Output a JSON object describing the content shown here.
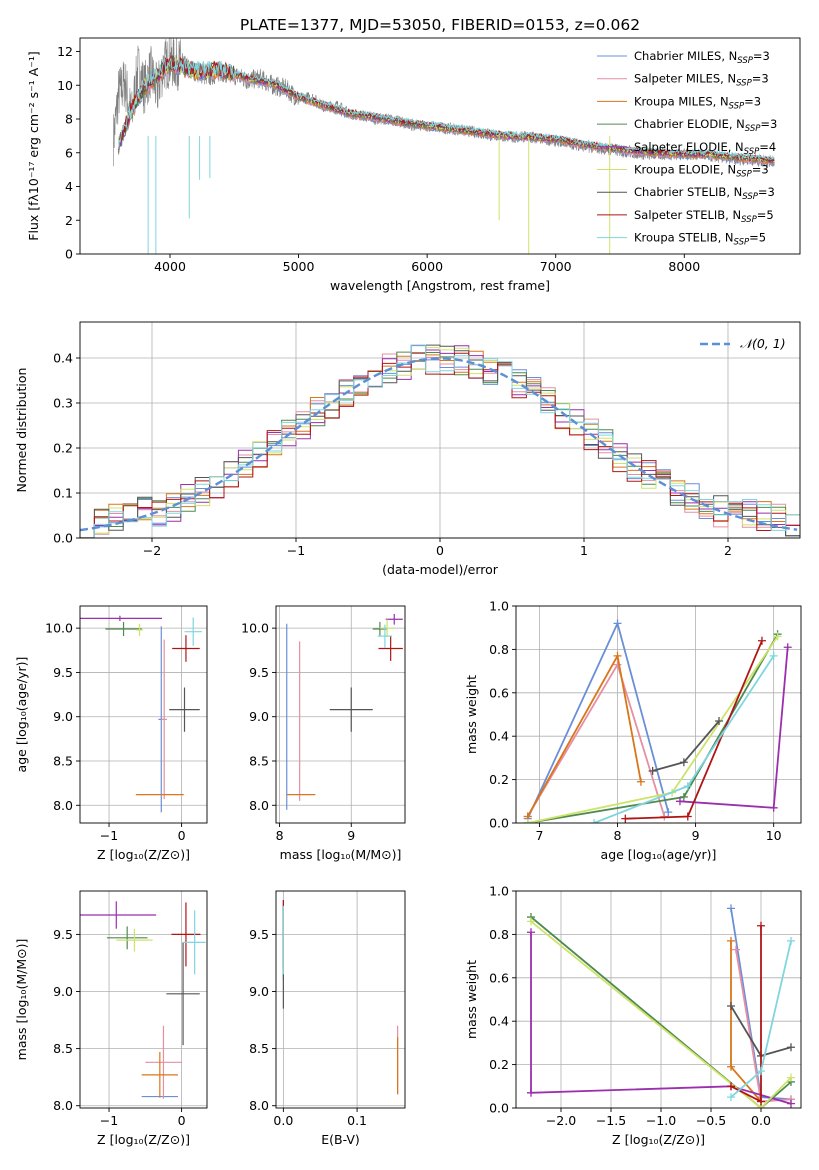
{
  "figure_title": "PLATE=1377, MJD=53050, FIBERID=0153, z=0.062",
  "models": [
    {
      "name": "Chabrier MILES",
      "nssp": "3",
      "color": "#6a8fd8"
    },
    {
      "name": "Salpeter MILES",
      "nssp": "3",
      "color": "#e58fa3"
    },
    {
      "name": "Kroupa MILES",
      "nssp": "3",
      "color": "#d9761a"
    },
    {
      "name": "Chabrier ELODIE",
      "nssp": "3",
      "color": "#4f8a4f"
    },
    {
      "name": "Salpeter ELODIE",
      "nssp": "4",
      "color": "#9b2fae"
    },
    {
      "name": "Kroupa ELODIE",
      "nssp": "3",
      "color": "#cde36a"
    },
    {
      "name": "Chabrier STELIB",
      "nssp": "3",
      "color": "#555555"
    },
    {
      "name": "Salpeter STELIB",
      "nssp": "5",
      "color": "#b01515"
    },
    {
      "name": "Kroupa STELIB",
      "nssp": "5",
      "color": "#7fd6df"
    }
  ],
  "chart_data": [
    {
      "id": "spectrum",
      "type": "line",
      "xlabel": "wavelength [Angstrom, rest frame]",
      "ylabel": "Flux [fλ10⁻¹⁷ erg cm⁻² s⁻¹ A⁻¹]",
      "xlim": [
        3300,
        8900
      ],
      "ylim": [
        0,
        12.8
      ],
      "xticks": [
        4000,
        5000,
        6000,
        7000,
        8000
      ],
      "yticks": [
        0,
        2,
        4,
        6,
        8,
        10,
        12
      ],
      "data_series": {
        "name": "",
        "color": "#808080",
        "x": [
          3560,
          3600,
          3650,
          3700,
          3750,
          3800,
          3850,
          3900,
          3950,
          4000,
          4100,
          4200,
          4300,
          4400,
          4500,
          4600,
          4700,
          4800,
          4900,
          5000,
          5100,
          5200,
          5300,
          5400,
          5500,
          5600,
          5700,
          5800,
          5900,
          6000,
          6100,
          6200,
          6300,
          6400,
          6500,
          6600,
          6700,
          6800,
          6900,
          7000,
          7100,
          7200,
          7300,
          7400,
          7500,
          7600,
          7700,
          7800,
          7900,
          8000,
          8100,
          8200,
          8300,
          8400,
          8500,
          8600,
          8700
        ],
        "y": [
          6.8,
          9.5,
          10.2,
          8.0,
          11.0,
          9.8,
          10.8,
          9.6,
          11.2,
          11.4,
          11.2,
          10.8,
          10.5,
          10.8,
          10.6,
          10.3,
          10.4,
          10.0,
          9.8,
          9.2,
          9.3,
          8.7,
          8.8,
          8.3,
          8.2,
          8.0,
          8.0,
          7.8,
          7.6,
          7.6,
          7.5,
          7.4,
          7.3,
          7.2,
          7.0,
          7.0,
          6.9,
          7.0,
          6.8,
          6.7,
          6.6,
          6.4,
          6.3,
          6.2,
          6.1,
          6.0,
          5.9,
          5.9,
          5.9,
          5.9,
          5.9,
          5.8,
          5.7,
          5.6,
          5.6,
          5.5,
          5.5
        ]
      },
      "model_series": {
        "name": "",
        "color": "#7fd6df",
        "x": [
          3600,
          3700,
          3800,
          3900,
          4000,
          4200,
          4400,
          4600,
          4800,
          5000,
          5200,
          5400,
          5600,
          5800,
          6000,
          6200,
          6400,
          6600,
          6800,
          7000,
          7200,
          7400,
          7600,
          7800,
          8000,
          8200,
          8400,
          8600,
          8700
        ],
        "y": [
          6.5,
          8.5,
          9.9,
          10.6,
          11.3,
          10.8,
          10.9,
          10.4,
          10.1,
          9.3,
          8.8,
          8.3,
          8.1,
          7.8,
          7.6,
          7.4,
          7.2,
          7.0,
          6.9,
          6.8,
          6.5,
          6.3,
          6.1,
          6.0,
          5.9,
          5.9,
          5.7,
          5.6,
          5.5
        ]
      }
    },
    {
      "id": "residual_histogram",
      "type": "histogram",
      "xlabel": "(data-model)/error",
      "ylabel": "Normed distribution",
      "xlim": [
        -2.5,
        2.5
      ],
      "ylim": [
        0,
        0.48
      ],
      "xticks": [
        -2,
        -1,
        0,
        1,
        2
      ],
      "yticks": [
        0.0,
        0.1,
        0.2,
        0.3,
        0.4
      ],
      "legend": "𝒩(0, 1)",
      "legend_loc": "upper right",
      "bin_width": 0.1
    },
    {
      "id": "age_vs_Z",
      "type": "errorbar",
      "xlabel": "Z [log₁₀(Z/Z⊙)]",
      "ylabel": "age  [log₁₀(age/yr)]",
      "xlim": [
        -1.4,
        0.35
      ],
      "ylim": [
        7.8,
        10.25
      ],
      "xticks": [
        -1,
        0
      ],
      "yticks": [
        8.0,
        8.5,
        9.0,
        9.5,
        10.0
      ],
      "points": [
        {
          "m": 0,
          "x": -0.28,
          "y": 8.97,
          "xerr": 0.04,
          "yerr": 1.05
        },
        {
          "m": 1,
          "x": -0.24,
          "y": 8.97,
          "xerr": 0.04,
          "yerr": 0.9
        },
        {
          "m": 2,
          "x": -0.3,
          "y": 8.12,
          "xerr": 0.33,
          "yerr": 0.0
        },
        {
          "m": 3,
          "x": -0.8,
          "y": 9.99,
          "xerr": 0.25,
          "yerr": 0.08
        },
        {
          "m": 4,
          "x": -0.85,
          "y": 10.11,
          "xerr": 0.58,
          "yerr": 0.03
        },
        {
          "m": 5,
          "x": -0.58,
          "y": 9.98,
          "xerr": 0.05,
          "yerr": 0.07
        },
        {
          "m": 6,
          "x": 0.04,
          "y": 9.08,
          "xerr": 0.21,
          "yerr": 0.25
        },
        {
          "m": 7,
          "x": 0.06,
          "y": 9.77,
          "xerr": 0.19,
          "yerr": 0.15
        },
        {
          "m": 8,
          "x": 0.16,
          "y": 9.96,
          "xerr": 0.12,
          "yerr": 0.16
        }
      ]
    },
    {
      "id": "age_vs_mass",
      "type": "errorbar",
      "xlabel": "mass [log₁₀(M/M⊙)]",
      "ylabel": "",
      "xlim": [
        7.95,
        9.75
      ],
      "ylim": [
        7.8,
        10.25
      ],
      "xticks": [
        8,
        9
      ],
      "yticks": [
        8.0,
        8.5,
        9.0,
        9.5,
        10.0
      ],
      "points": [
        {
          "m": 0,
          "x": 8.1,
          "y": 9.0,
          "xerr": 0.0,
          "yerr": 1.05
        },
        {
          "m": 1,
          "x": 8.28,
          "y": 8.95,
          "xerr": 0.0,
          "yerr": 0.9
        },
        {
          "m": 2,
          "x": 8.3,
          "y": 8.12,
          "xerr": 0.2,
          "yerr": 0.0
        },
        {
          "m": 3,
          "x": 9.4,
          "y": 9.99,
          "xerr": 0.1,
          "yerr": 0.08
        },
        {
          "m": 4,
          "x": 9.6,
          "y": 10.1,
          "xerr": 0.12,
          "yerr": 0.06
        },
        {
          "m": 5,
          "x": 9.5,
          "y": 10.0,
          "xerr": 0.1,
          "yerr": 0.1
        },
        {
          "m": 6,
          "x": 9.0,
          "y": 9.08,
          "xerr": 0.3,
          "yerr": 0.25
        },
        {
          "m": 7,
          "x": 9.55,
          "y": 9.77,
          "xerr": 0.17,
          "yerr": 0.14
        },
        {
          "m": 8,
          "x": 9.47,
          "y": 9.91,
          "xerr": 0.1,
          "yerr": 0.13
        }
      ]
    },
    {
      "id": "weight_vs_age",
      "type": "line",
      "xlabel": "age  [log₁₀(age/yr)]",
      "ylabel": "mass weight",
      "xlim": [
        6.7,
        10.35
      ],
      "ylim": [
        0,
        1.0
      ],
      "xticks": [
        7,
        8,
        9,
        10
      ],
      "yticks": [
        0.0,
        0.2,
        0.4,
        0.6,
        0.8,
        1.0
      ],
      "series": [
        {
          "m": 0,
          "x": [
            6.85,
            8.0,
            8.65
          ],
          "y": [
            0.02,
            0.92,
            0.05
          ]
        },
        {
          "m": 1,
          "x": [
            6.85,
            8.0,
            8.6
          ],
          "y": [
            0.03,
            0.73,
            0.03
          ]
        },
        {
          "m": 2,
          "x": [
            6.85,
            8.0,
            8.3
          ],
          "y": [
            0.03,
            0.77,
            0.19
          ]
        },
        {
          "m": 3,
          "x": [
            6.85,
            8.85,
            10.05
          ],
          "y": [
            0.0,
            0.12,
            0.87
          ]
        },
        {
          "m": 4,
          "x": [
            8.8,
            10.0,
            10.18
          ],
          "y": [
            0.1,
            0.07,
            0.81
          ]
        },
        {
          "m": 5,
          "x": [
            6.85,
            8.7,
            10.05
          ],
          "y": [
            0.0,
            0.14,
            0.86
          ]
        },
        {
          "m": 6,
          "x": [
            8.45,
            8.85,
            9.3
          ],
          "y": [
            0.24,
            0.28,
            0.47
          ]
        },
        {
          "m": 7,
          "x": [
            8.1,
            8.9,
            9.85
          ],
          "y": [
            0.02,
            0.03,
            0.84
          ]
        },
        {
          "m": 8,
          "x": [
            7.7,
            8.9,
            10.0
          ],
          "y": [
            0.0,
            0.17,
            0.77
          ]
        }
      ]
    },
    {
      "id": "mass_vs_Z",
      "type": "errorbar",
      "xlabel": "Z [log₁₀(Z/Z⊙)]",
      "ylabel": "mass [log₁₀(M/M⊙)]",
      "xlim": [
        -1.4,
        0.35
      ],
      "ylim": [
        7.98,
        9.88
      ],
      "xticks": [
        -1,
        0
      ],
      "yticks": [
        8.0,
        8.5,
        9.0,
        9.5
      ],
      "points": [
        {
          "m": 0,
          "x": -0.3,
          "y": 8.08,
          "xerr": 0.25,
          "yerr": 0.0
        },
        {
          "m": 1,
          "x": -0.25,
          "y": 8.38,
          "xerr": 0.25,
          "yerr": 0.32
        },
        {
          "m": 2,
          "x": -0.3,
          "y": 8.27,
          "xerr": 0.25,
          "yerr": 0.2
        },
        {
          "m": 3,
          "x": -0.75,
          "y": 9.47,
          "xerr": 0.28,
          "yerr": 0.1
        },
        {
          "m": 4,
          "x": -0.9,
          "y": 9.67,
          "xerr": 0.55,
          "yerr": 0.12
        },
        {
          "m": 5,
          "x": -0.65,
          "y": 9.45,
          "xerr": 0.25,
          "yerr": 0.1
        },
        {
          "m": 6,
          "x": 0.02,
          "y": 8.98,
          "xerr": 0.23,
          "yerr": 0.45
        },
        {
          "m": 7,
          "x": 0.06,
          "y": 9.5,
          "xerr": 0.2,
          "yerr": 0.28
        },
        {
          "m": 8,
          "x": 0.18,
          "y": 9.43,
          "xerr": 0.15,
          "yerr": 0.28
        }
      ]
    },
    {
      "id": "mass_vs_ebv",
      "type": "errorbar",
      "xlabel": "E(B-V)",
      "ylabel": "",
      "xlim": [
        -0.01,
        0.165
      ],
      "ylim": [
        7.98,
        9.88
      ],
      "xticks": [
        0.0,
        0.1
      ],
      "yticks": [
        8.0,
        8.5,
        9.0,
        9.5
      ],
      "points": [
        {
          "m": 0,
          "x": 0.0,
          "y": 9.4,
          "xerr": 0,
          "yerr": 0.3
        },
        {
          "m": 1,
          "x": 0.155,
          "y": 8.4,
          "xerr": 0,
          "yerr": 0.3
        },
        {
          "m": 2,
          "x": 0.155,
          "y": 8.35,
          "xerr": 0,
          "yerr": 0.25
        },
        {
          "m": 3,
          "x": 0.0,
          "y": 9.45,
          "xerr": 0,
          "yerr": 0.3
        },
        {
          "m": 4,
          "x": 0.0,
          "y": 9.6,
          "xerr": 0,
          "yerr": 0.2
        },
        {
          "m": 5,
          "x": 0.0,
          "y": 9.42,
          "xerr": 0,
          "yerr": 0.3
        },
        {
          "m": 6,
          "x": 0.0,
          "y": 9.3,
          "xerr": 0,
          "yerr": 0.45
        },
        {
          "m": 7,
          "x": 0.0,
          "y": 9.5,
          "xerr": 0,
          "yerr": 0.3
        },
        {
          "m": 8,
          "x": 0.0,
          "y": 9.45,
          "xerr": 0,
          "yerr": 0.3
        }
      ]
    },
    {
      "id": "weight_vs_Z",
      "type": "line",
      "xlabel": "Z [log₁₀(Z/Z⊙)]",
      "ylabel": "mass weight",
      "xlim": [
        -2.45,
        0.4
      ],
      "ylim": [
        0,
        1.0
      ],
      "xticks": [
        -2.0,
        -1.5,
        -1.0,
        -0.5,
        0.0
      ],
      "yticks": [
        0.0,
        0.2,
        0.4,
        0.6,
        0.8,
        1.0
      ],
      "series": [
        {
          "m": 0,
          "x": [
            -0.3,
            0.0,
            0.3
          ],
          "y": [
            0.92,
            0.05,
            0.04
          ]
        },
        {
          "m": 1,
          "x": [
            -0.25,
            0.0,
            0.3
          ],
          "y": [
            0.73,
            0.03,
            0.04
          ]
        },
        {
          "m": 2,
          "x": [
            -0.3,
            -0.3,
            0.0
          ],
          "y": [
            0.77,
            0.19,
            0.03
          ]
        },
        {
          "m": 3,
          "x": [
            -2.3,
            0.0,
            0.3
          ],
          "y": [
            0.88,
            0.0,
            0.12
          ]
        },
        {
          "m": 4,
          "x": [
            -2.3,
            -2.3,
            -0.3,
            0.3
          ],
          "y": [
            0.81,
            0.07,
            0.1,
            0.02
          ]
        },
        {
          "m": 5,
          "x": [
            -2.3,
            0.0,
            0.3
          ],
          "y": [
            0.86,
            0.0,
            0.14
          ]
        },
        {
          "m": 6,
          "x": [
            -0.3,
            0.0,
            0.3
          ],
          "y": [
            0.47,
            0.24,
            0.28
          ]
        },
        {
          "m": 7,
          "x": [
            0.0,
            0.0,
            -0.3
          ],
          "y": [
            0.84,
            0.03,
            0.1
          ]
        },
        {
          "m": 8,
          "x": [
            0.3,
            0.0,
            -0.3
          ],
          "y": [
            0.77,
            0.17,
            0.05
          ]
        }
      ]
    }
  ]
}
